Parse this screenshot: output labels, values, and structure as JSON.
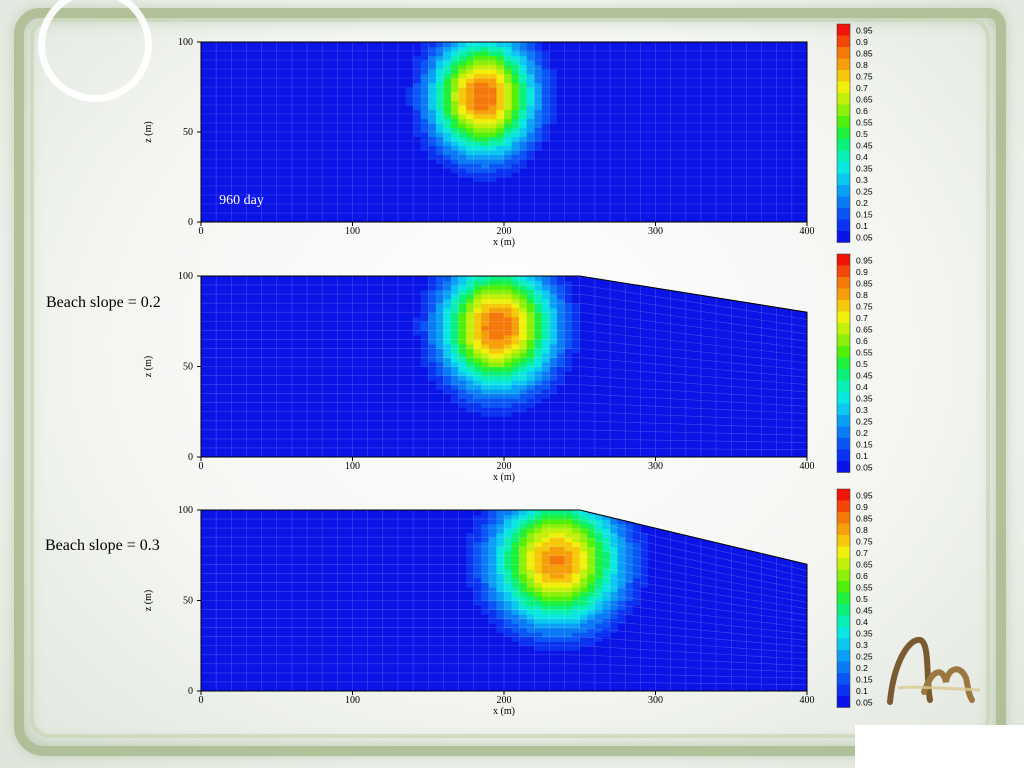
{
  "annotation_day": "960 day",
  "panel_labels": [
    "Beach slope = 0.2",
    "Beach slope = 0.3"
  ],
  "colorbar_levels": [
    "0.95",
    "0.9",
    "0.85",
    "0.8",
    "0.75",
    "0.7",
    "0.65",
    "0.6",
    "0.55",
    "0.5",
    "0.45",
    "0.4",
    "0.35",
    "0.3",
    "0.25",
    "0.2",
    "0.15",
    "0.1",
    "0.05"
  ],
  "colors": {
    "background_blue": "#0a14e6",
    "frame_green": "#a7b98b"
  },
  "chart_data": [
    {
      "type": "heatmap",
      "title": "",
      "annotation": "960 day",
      "xlabel": "x (m)",
      "ylabel": "z (m)",
      "xlim": [
        0,
        400
      ],
      "ylim": [
        0,
        100
      ],
      "xticks": [
        "0",
        "100",
        "200",
        "300",
        "400"
      ],
      "yticks": [
        "0",
        "50",
        "100"
      ],
      "beach_slope": null,
      "plume": {
        "center_x": 186,
        "center_z": 70,
        "peak": 0.9,
        "half_width_x": 50,
        "half_height_z": 48
      },
      "colorbar_levels": [
        0.05,
        0.1,
        0.15,
        0.2,
        0.25,
        0.3,
        0.35,
        0.4,
        0.45,
        0.5,
        0.55,
        0.6,
        0.65,
        0.7,
        0.75,
        0.8,
        0.85,
        0.9,
        0.95
      ]
    },
    {
      "type": "heatmap",
      "title": "Beach slope = 0.2",
      "xlabel": "x (m)",
      "ylabel": "z (m)",
      "xlim": [
        0,
        400
      ],
      "ylim": [
        0,
        100
      ],
      "xticks": [
        "0",
        "100",
        "200",
        "300",
        "400"
      ],
      "yticks": [
        "0",
        "50",
        "100"
      ],
      "beach_slope": 0.2,
      "top_surface": [
        [
          0,
          100
        ],
        [
          250,
          100
        ],
        [
          400,
          80
        ]
      ],
      "plume": {
        "center_x": 196,
        "center_z": 72,
        "peak": 0.9,
        "half_width_x": 55,
        "half_height_z": 50
      },
      "colorbar_levels": [
        0.05,
        0.1,
        0.15,
        0.2,
        0.25,
        0.3,
        0.35,
        0.4,
        0.45,
        0.5,
        0.55,
        0.6,
        0.65,
        0.7,
        0.75,
        0.8,
        0.85,
        0.9,
        0.95
      ]
    },
    {
      "type": "heatmap",
      "title": "Beach slope = 0.3",
      "xlabel": "x (m)",
      "ylabel": "z (m)",
      "xlim": [
        0,
        400
      ],
      "ylim": [
        0,
        100
      ],
      "xticks": [
        "0",
        "100",
        "200",
        "300",
        "400"
      ],
      "yticks": [
        "0",
        "50",
        "100"
      ],
      "beach_slope": 0.3,
      "top_surface": [
        [
          0,
          100
        ],
        [
          250,
          100
        ],
        [
          400,
          70
        ]
      ],
      "plume": {
        "center_x": 235,
        "center_z": 72,
        "peak": 0.86,
        "half_width_x": 62,
        "half_height_z": 52
      },
      "colorbar_levels": [
        0.05,
        0.1,
        0.15,
        0.2,
        0.25,
        0.3,
        0.35,
        0.4,
        0.45,
        0.5,
        0.55,
        0.6,
        0.65,
        0.7,
        0.75,
        0.8,
        0.85,
        0.9,
        0.95
      ]
    }
  ]
}
